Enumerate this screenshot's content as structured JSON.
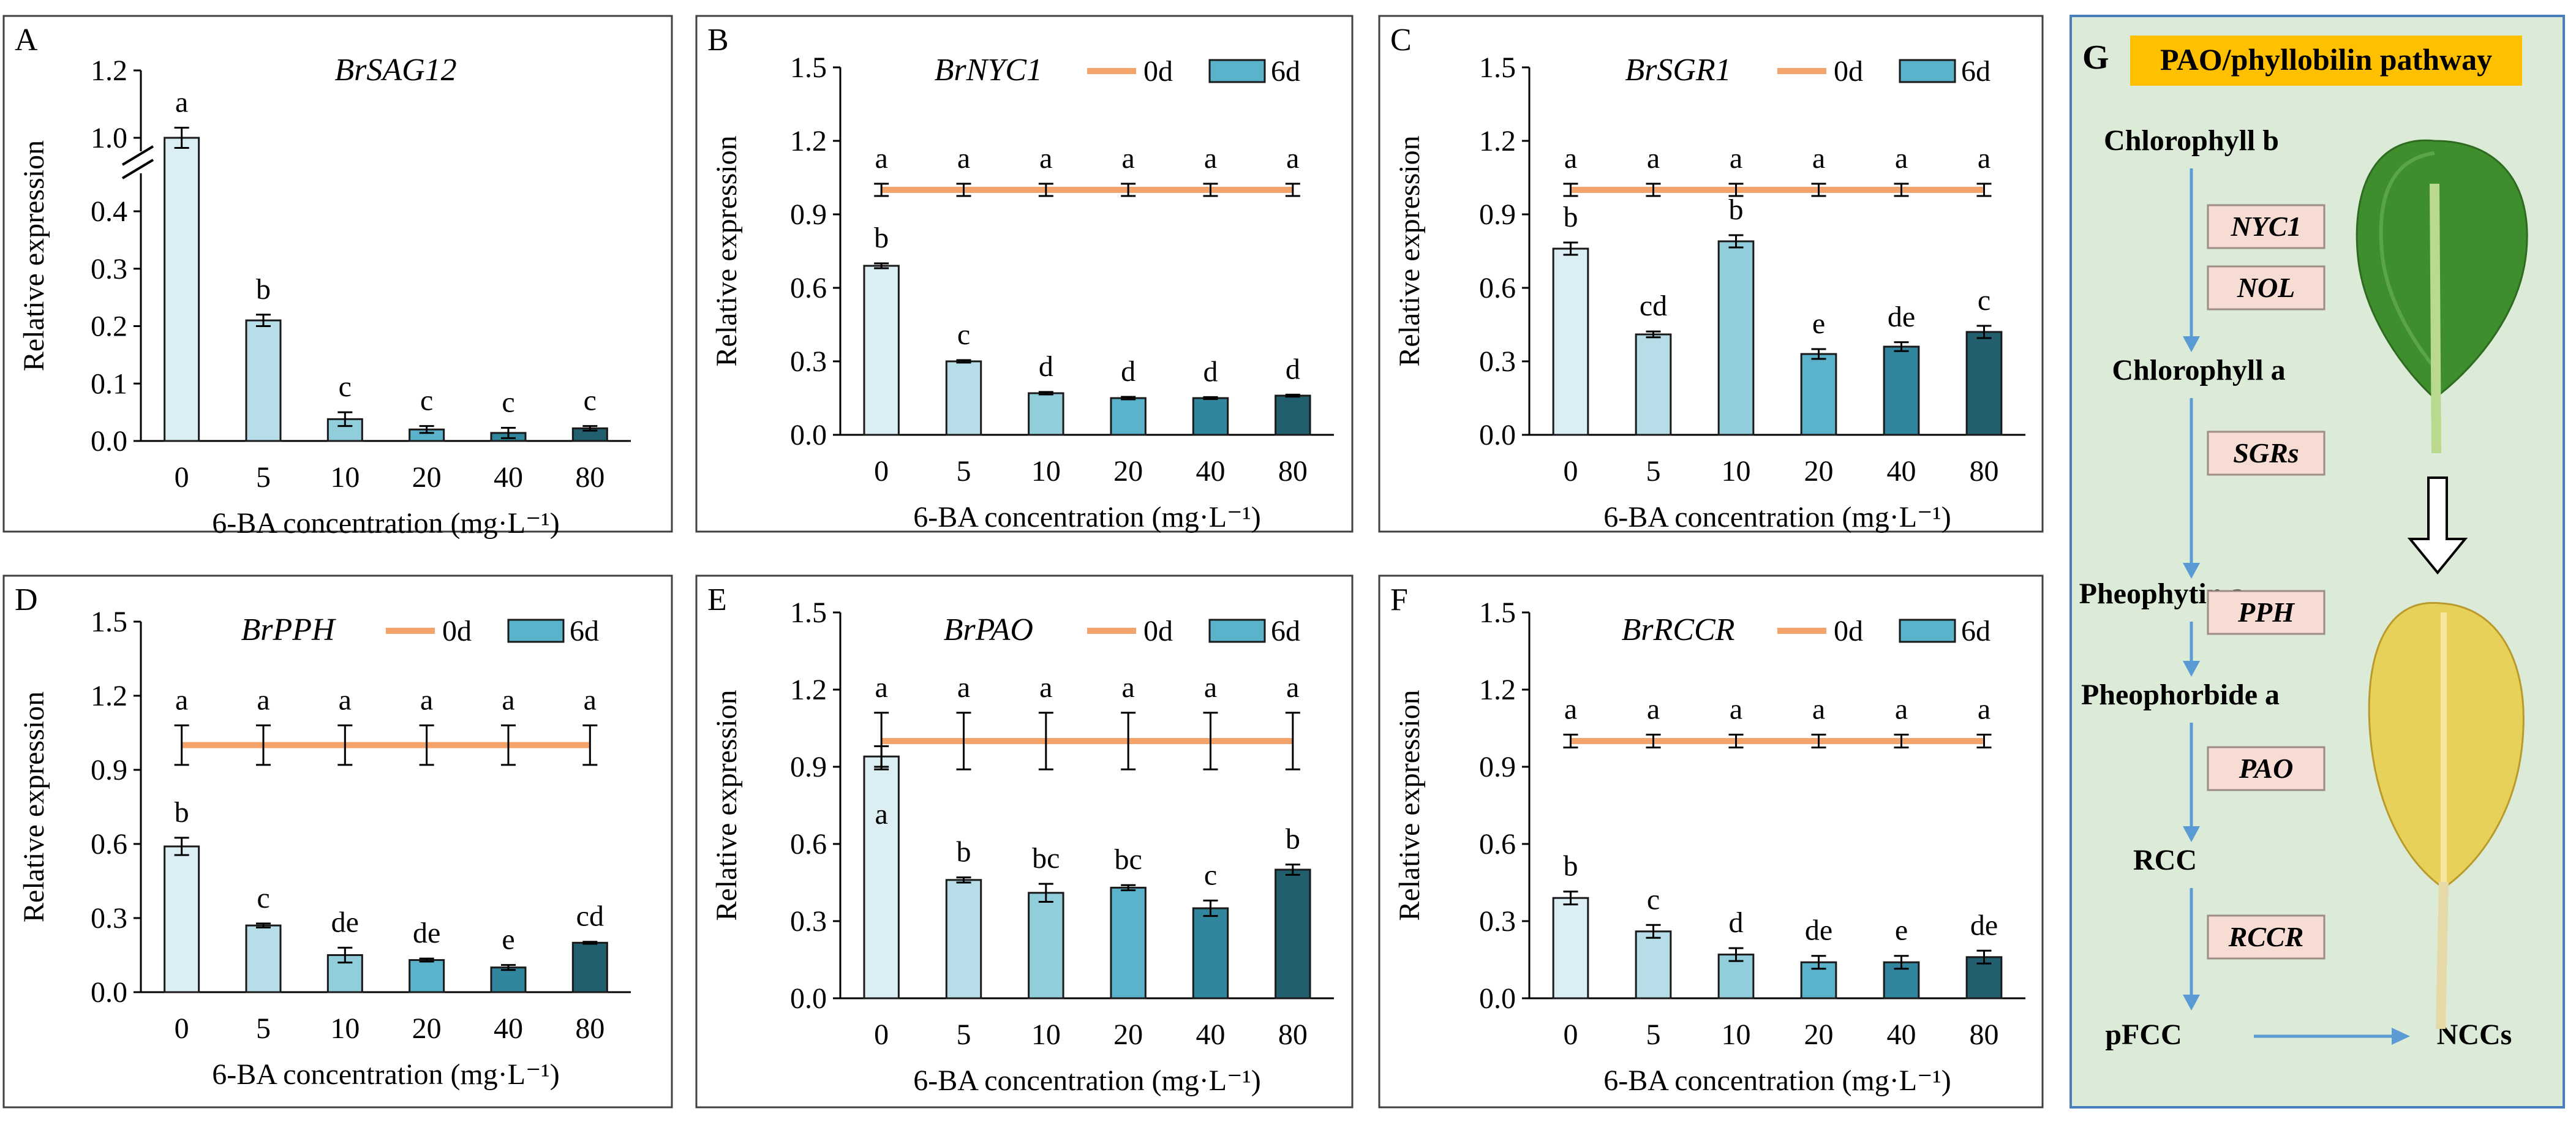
{
  "colors": {
    "frame": "#404040",
    "line_0d": "#F4A46A",
    "bar_edge": "#1a1a1a",
    "bar_palette": [
      "#DAEEF3",
      "#B7DEE8",
      "#92CDDC",
      "#5BB3CB",
      "#31859C",
      "#215F6E"
    ],
    "pathway_bg": "#DCEBD7",
    "pathway_border": "#4A7EBB",
    "pathway_title_bg": "#FFC000",
    "enzyme_bg": "#F7DCD3",
    "enzyme_border": "#9D8B86",
    "arrow": "#5B9BD5"
  },
  "chart_data": [
    {
      "id": "A",
      "type": "bar",
      "panel_label": "A",
      "gene": "BrSAG12",
      "xlabel": "6-BA concentration (mg·L⁻¹)",
      "ylabel": "Relative expression",
      "categories": [
        "0",
        "5",
        "10",
        "20",
        "40",
        "80"
      ],
      "legend": null,
      "series": [
        {
          "name": "6d",
          "values": [
            1.0,
            0.21,
            0.038,
            0.02,
            0.014,
            0.022
          ],
          "errors": [
            0.03,
            0.01,
            0.012,
            0.006,
            0.009,
            0.004
          ]
        }
      ],
      "letters_bar": [
        "a",
        "b",
        "c",
        "c",
        "c",
        "c"
      ],
      "broken_axis": true,
      "lower_ylim": [
        0,
        0.4
      ],
      "upper_ylim": [
        1.0,
        1.2
      ],
      "yticks_lower": [
        "0.0",
        "0.1",
        "0.2",
        "0.3",
        "0.4"
      ],
      "yticks_upper": [
        "1.0",
        "1.2"
      ]
    },
    {
      "id": "B",
      "type": "bar",
      "panel_label": "B",
      "gene": "BrNYC1",
      "xlabel": "6-BA concentration (mg·L⁻¹)",
      "ylabel": "Relative expression",
      "categories": [
        "0",
        "5",
        "10",
        "20",
        "40",
        "80"
      ],
      "legend": [
        "0d",
        "6d"
      ],
      "ylim": [
        0,
        1.5
      ],
      "yticks": [
        "0.0",
        "0.3",
        "0.6",
        "0.9",
        "1.2",
        "1.5"
      ],
      "line": {
        "name": "0d",
        "values": [
          1.0,
          1.0,
          1.0,
          1.0,
          1.0,
          1.0
        ],
        "errors": [
          0.025,
          0.025,
          0.025,
          0.025,
          0.025,
          0.025
        ]
      },
      "series": [
        {
          "name": "6d",
          "values": [
            0.69,
            0.3,
            0.17,
            0.15,
            0.15,
            0.16
          ],
          "errors": [
            0.01,
            0.005,
            0.005,
            0.005,
            0.004,
            0.004
          ]
        }
      ],
      "letters_line": [
        "a",
        "a",
        "a",
        "a",
        "a",
        "a"
      ],
      "letters_bar": [
        "b",
        "c",
        "d",
        "d",
        "d",
        "d"
      ]
    },
    {
      "id": "C",
      "type": "bar",
      "panel_label": "C",
      "gene": "BrSGR1",
      "xlabel": "6-BA concentration (mg·L⁻¹)",
      "ylabel": "Relative expression",
      "categories": [
        "0",
        "5",
        "10",
        "20",
        "40",
        "80"
      ],
      "legend": [
        "0d",
        "6d"
      ],
      "ylim": [
        0,
        1.5
      ],
      "yticks": [
        "0.0",
        "0.3",
        "0.6",
        "0.9",
        "1.2",
        "1.5"
      ],
      "line": {
        "name": "0d",
        "values": [
          1.0,
          1.0,
          1.0,
          1.0,
          1.0,
          1.0
        ],
        "errors": [
          0.025,
          0.025,
          0.025,
          0.025,
          0.025,
          0.025
        ]
      },
      "series": [
        {
          "name": "6d",
          "values": [
            0.76,
            0.41,
            0.79,
            0.33,
            0.36,
            0.42
          ],
          "errors": [
            0.025,
            0.012,
            0.025,
            0.02,
            0.018,
            0.025
          ]
        }
      ],
      "letters_line": [
        "a",
        "a",
        "a",
        "a",
        "a",
        "a"
      ],
      "letters_bar": [
        "b",
        "cd",
        "b",
        "e",
        "de",
        "c"
      ]
    },
    {
      "id": "D",
      "type": "bar",
      "panel_label": "D",
      "gene": "BrPPH",
      "xlabel": "6-BA concentration (mg·L⁻¹)",
      "ylabel": "Relative expression",
      "categories": [
        "0",
        "5",
        "10",
        "20",
        "40",
        "80"
      ],
      "legend": [
        "0d",
        "6d"
      ],
      "ylim": [
        0,
        1.5
      ],
      "yticks": [
        "0.0",
        "0.3",
        "0.6",
        "0.9",
        "1.2",
        "1.5"
      ],
      "line": {
        "name": "0d",
        "values": [
          1.0,
          1.0,
          1.0,
          1.0,
          1.0,
          1.0
        ],
        "errors": [
          0.08,
          0.08,
          0.08,
          0.08,
          0.08,
          0.08
        ]
      },
      "series": [
        {
          "name": "6d",
          "values": [
            0.59,
            0.27,
            0.15,
            0.13,
            0.1,
            0.2
          ],
          "errors": [
            0.035,
            0.008,
            0.03,
            0.006,
            0.01,
            0.004
          ]
        }
      ],
      "letters_line": [
        "a",
        "a",
        "a",
        "a",
        "a",
        "a"
      ],
      "letters_bar": [
        "b",
        "c",
        "de",
        "de",
        "e",
        "cd"
      ]
    },
    {
      "id": "E",
      "type": "bar",
      "panel_label": "E",
      "gene": "BrPAO",
      "xlabel": "6-BA concentration (mg·L⁻¹)",
      "ylabel": "Relative expression",
      "categories": [
        "0",
        "5",
        "10",
        "20",
        "40",
        "80"
      ],
      "legend": [
        "0d",
        "6d"
      ],
      "ylim": [
        0,
        1.5
      ],
      "yticks": [
        "0.0",
        "0.3",
        "0.6",
        "0.9",
        "1.2",
        "1.5"
      ],
      "line": {
        "name": "0d",
        "values": [
          1.0,
          1.0,
          1.0,
          1.0,
          1.0,
          1.0
        ],
        "errors": [
          0.11,
          0.11,
          0.11,
          0.11,
          0.11,
          0.11
        ]
      },
      "series": [
        {
          "name": "6d",
          "values": [
            0.94,
            0.46,
            0.41,
            0.43,
            0.35,
            0.5
          ],
          "errors": [
            0.04,
            0.01,
            0.035,
            0.01,
            0.03,
            0.02
          ]
        }
      ],
      "letters_line": [
        "a",
        "a",
        "a",
        "a",
        "a",
        "a"
      ],
      "letters_bar": [
        "a",
        "b",
        "bc",
        "bc",
        "c",
        "b"
      ]
    },
    {
      "id": "F",
      "type": "bar",
      "panel_label": "F",
      "gene": "BrRCCR",
      "xlabel": "6-BA concentration (mg·L⁻¹)",
      "ylabel": "Relative expression",
      "categories": [
        "0",
        "5",
        "10",
        "20",
        "40",
        "80"
      ],
      "legend": [
        "0d",
        "6d"
      ],
      "ylim": [
        0,
        1.5
      ],
      "yticks": [
        "0.0",
        "0.3",
        "0.6",
        "0.9",
        "1.2",
        "1.5"
      ],
      "line": {
        "name": "0d",
        "values": [
          1.0,
          1.0,
          1.0,
          1.0,
          1.0,
          1.0
        ],
        "errors": [
          0.025,
          0.025,
          0.025,
          0.025,
          0.025,
          0.025
        ]
      },
      "series": [
        {
          "name": "6d",
          "values": [
            0.39,
            0.26,
            0.17,
            0.14,
            0.14,
            0.16
          ],
          "errors": [
            0.025,
            0.025,
            0.025,
            0.025,
            0.025,
            0.025
          ]
        }
      ],
      "letters_line": [
        "a",
        "a",
        "a",
        "a",
        "a",
        "a"
      ],
      "letters_bar": [
        "b",
        "c",
        "d",
        "de",
        "e",
        "de"
      ]
    }
  ],
  "pathway": {
    "panel_label": "G",
    "title": "PAO/phyllobilin pathway",
    "compounds": [
      "Chlorophyll b",
      "Chlorophyll a",
      "Pheophytin a",
      "Pheophorbide a",
      "RCC",
      "pFCC",
      "NCCs"
    ],
    "enzymes": [
      "NYC1",
      "NOL",
      "SGRs",
      "PPH",
      "PAO",
      "RCCR"
    ]
  }
}
